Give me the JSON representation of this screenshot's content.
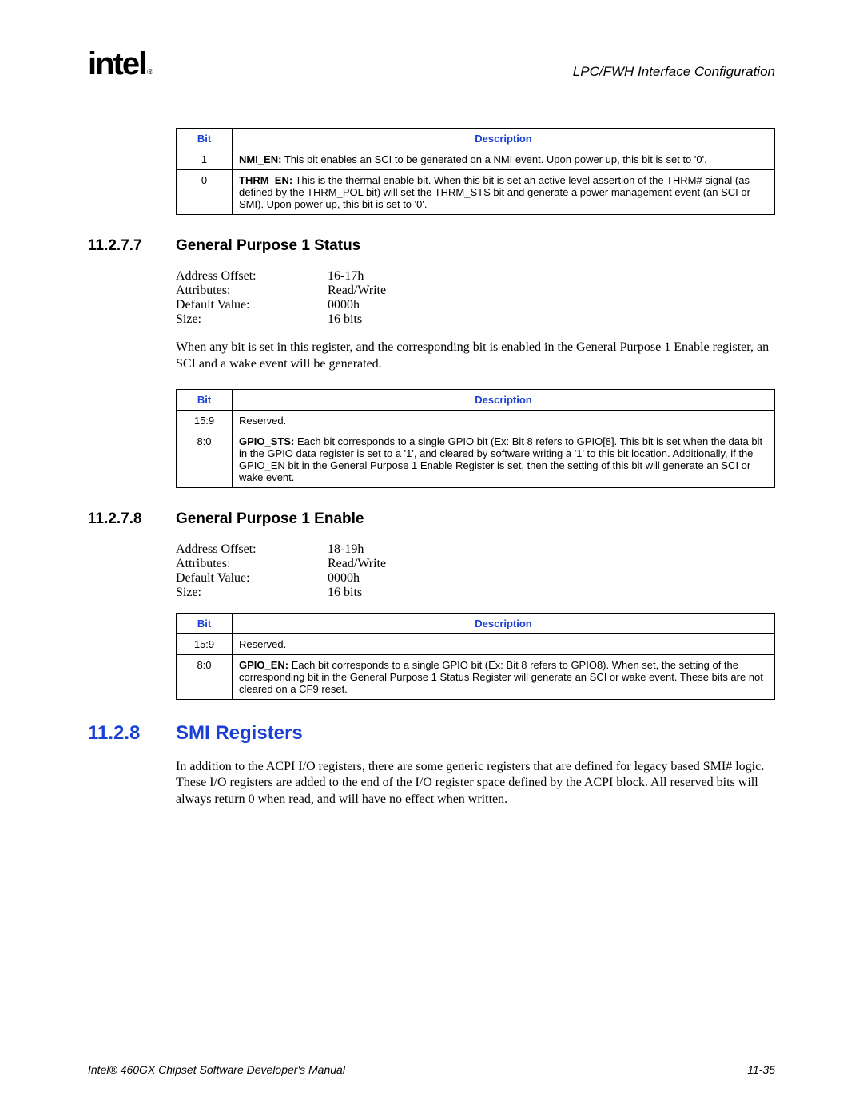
{
  "header": {
    "logo_text": "intel",
    "reg_mark": "®",
    "section_name": "LPC/FWH Interface Configuration"
  },
  "colors": {
    "accent": "#1a3fd4",
    "text": "#000000",
    "background": "#ffffff",
    "border": "#000000"
  },
  "table1": {
    "headers": {
      "bit": "Bit",
      "desc": "Description"
    },
    "rows": [
      {
        "bit": "1",
        "bold": "NMI_EN:",
        "rest": " This bit enables an SCI to be generated on a NMI event. Upon power up, this bit is set to '0'."
      },
      {
        "bit": "0",
        "bold": "THRM_EN:",
        "rest": " This is the thermal enable bit. When this bit is set an active level assertion of the THRM# signal (as defined by the THRM_POL bit) will set the THRM_STS bit and generate a power management event (an SCI or SMI). Upon power up, this bit is set to '0'."
      }
    ]
  },
  "sec_11_2_7_7": {
    "num": "11.2.7.7",
    "title": "General Purpose 1 Status",
    "attrs": [
      {
        "label": "Address Offset:",
        "value": "16-17h"
      },
      {
        "label": "Attributes:",
        "value": "Read/Write"
      },
      {
        "label": "Default Value:",
        "value": "0000h"
      },
      {
        "label": "Size:",
        "value": "16 bits"
      }
    ],
    "body": "When any bit is set in this register, and the corresponding bit is enabled in the General Purpose 1 Enable register, an SCI and a wake event will be generated.",
    "table": {
      "headers": {
        "bit": "Bit",
        "desc": "Description"
      },
      "rows": [
        {
          "bit": "15:9",
          "bold": "",
          "rest": "Reserved."
        },
        {
          "bit": "8:0",
          "bold": "GPIO_STS:",
          "rest": " Each bit corresponds to a single GPIO bit (Ex: Bit 8 refers to GPIO[8]. This bit is set when the data bit in the GPIO data register is set to a '1', and cleared by software writing a '1' to this bit location. Additionally, if the GPIO_EN bit in the General Purpose 1 Enable Register is set, then the setting of this bit will generate an SCI or wake event."
        }
      ]
    }
  },
  "sec_11_2_7_8": {
    "num": "11.2.7.8",
    "title": "General Purpose 1 Enable",
    "attrs": [
      {
        "label": "Address Offset:",
        "value": "18-19h"
      },
      {
        "label": "Attributes:",
        "value": "Read/Write"
      },
      {
        "label": "Default Value:",
        "value": "0000h"
      },
      {
        "label": "Size:",
        "value": "16 bits"
      }
    ],
    "table": {
      "headers": {
        "bit": "Bit",
        "desc": "Description"
      },
      "rows": [
        {
          "bit": "15:9",
          "bold": "",
          "rest": "Reserved."
        },
        {
          "bit": "8:0",
          "bold": "GPIO_EN:",
          "rest": " Each bit corresponds to a single GPIO bit (Ex: Bit 8 refers to GPIO8). When set, the setting of the corresponding bit in the General Purpose 1 Status Register will generate an SCI or wake event. These bits are not cleared on a CF9 reset."
        }
      ]
    }
  },
  "sec_11_2_8": {
    "num": "11.2.8",
    "title": "SMI Registers",
    "body": "In addition to the ACPI I/O registers, there are some generic registers that are defined for legacy based SMI# logic. These I/O registers are added to the end of the I/O register space defined by the ACPI block. All reserved bits will always return 0 when read, and will have no effect when written."
  },
  "footer": {
    "left": "Intel® 460GX Chipset Software Developer's Manual",
    "right": "11-35"
  }
}
